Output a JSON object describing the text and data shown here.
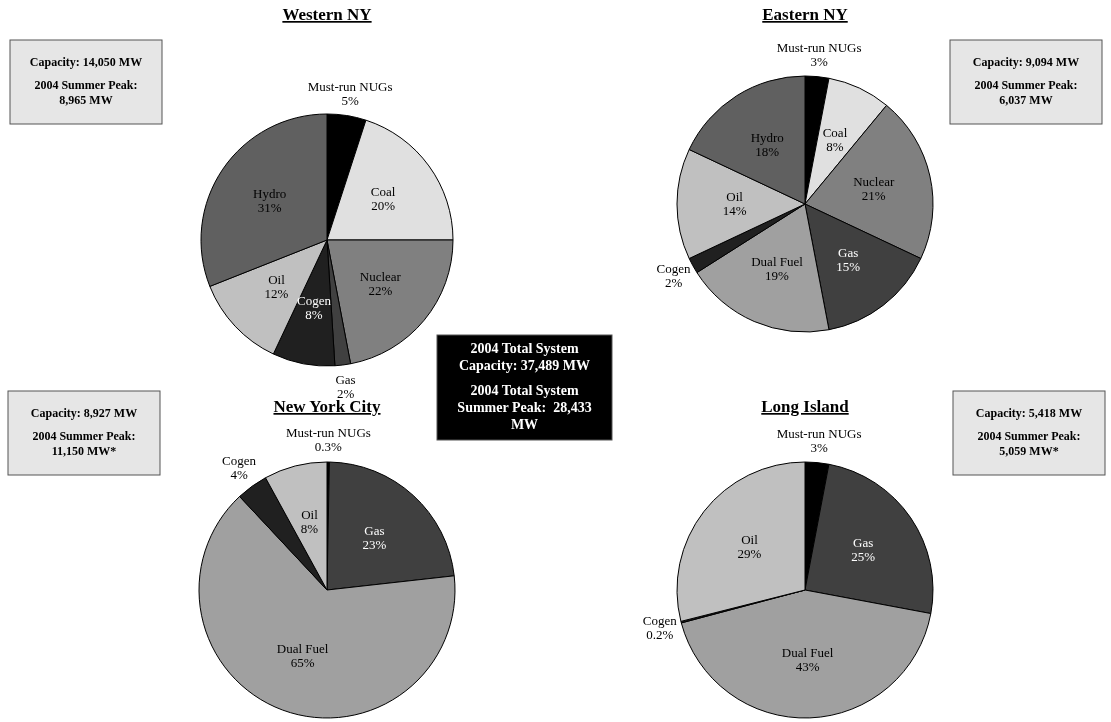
{
  "chart_data": [
    {
      "type": "pie",
      "title": "Western NY",
      "categories": [
        "Must-run NUGs",
        "Coal",
        "Nuclear",
        "Gas",
        "Cogen",
        "Oil",
        "Hydro"
      ],
      "values": [
        5,
        20,
        22,
        2,
        8,
        12,
        31
      ],
      "colors": [
        "#000000",
        "#e0e0e0",
        "#808080",
        "#404040",
        "#202020",
        "#c0c0c0",
        "#606060"
      ],
      "value_labels": [
        "5%",
        "20%",
        "22%",
        "2%",
        "8%",
        "12%",
        "31%"
      ]
    },
    {
      "type": "pie",
      "title": "Eastern NY",
      "categories": [
        "Must-run NUGs",
        "Coal",
        "Nuclear",
        "Gas",
        "Dual Fuel",
        "Cogen",
        "Oil",
        "Hydro"
      ],
      "values": [
        3,
        8,
        21,
        15,
        19,
        2,
        14,
        18
      ],
      "colors": [
        "#000000",
        "#e0e0e0",
        "#808080",
        "#404040",
        "#a0a0a0",
        "#202020",
        "#c0c0c0",
        "#606060"
      ],
      "value_labels": [
        "3%",
        "8%",
        "21%",
        "15%",
        "19%",
        "2%",
        "14%",
        "18%"
      ]
    },
    {
      "type": "other",
      "color": "#e6e6e6",
      "annotations": [
        "Capacity: 14,050 MW",
        "2004 Summer Peak: 8,965 MW"
      ]
    },
    {
      "type": "other",
      "color": "#e6e6e6",
      "annotations": [
        "Capacity: 9,094 MW",
        "2004 Summer Peak: 6,037 MW"
      ]
    },
    {
      "type": "other",
      "color": "#000000",
      "annotations": [
        "2004 Total System Capacity: 37,489 MW",
        "2004 Total System Summer Peak:  28,433 MW"
      ]
    },
    {
      "type": "pie",
      "title": "New York City",
      "categories": [
        "Must-run NUGs",
        "Gas",
        "Dual Fuel",
        "Cogen",
        "Oil"
      ],
      "values": [
        0.3,
        23,
        65,
        4,
        8
      ],
      "colors": [
        "#000000",
        "#404040",
        "#a0a0a0",
        "#202020",
        "#c0c0c0"
      ],
      "value_labels": [
        "0.3%",
        "23%",
        "65%",
        "4%",
        "8%"
      ]
    },
    {
      "type": "pie",
      "title": "Long Island",
      "categories": [
        "Must-run NUGs",
        "Gas",
        "Dual Fuel",
        "Cogen",
        "Oil"
      ],
      "values": [
        3,
        25,
        43,
        0.2,
        29
      ],
      "colors": [
        "#000000",
        "#404040",
        "#a0a0a0",
        "#202020",
        "#c0c0c0"
      ],
      "value_labels": [
        "3%",
        "25%",
        "43%",
        "0.2%",
        "29%"
      ]
    },
    {
      "type": "other",
      "color": "#e6e6e6",
      "annotations": [
        "Capacity: 8,927 MW",
        "2004 Summer Peak: 11,150 MW*"
      ]
    },
    {
      "type": "other",
      "color": "#e6e6e6",
      "annotations": [
        "Capacity: 5,418 MW",
        "2004 Summer Peak: 5,059 MW*"
      ]
    }
  ]
}
